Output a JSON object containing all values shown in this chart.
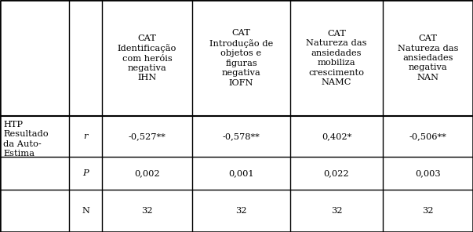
{
  "col_headers": [
    "CAT\nIdentificação\ncom heróis\nnegativa\nIHN",
    "CAT\nIntrodução de\nobjetos e\nfiguras\nnegativa\nIOFN",
    "CAT\nNatureza das\nansiedades\nmobiliza\ncrescimento\nNAMC",
    "CAT\nNatureza das\nansiedades\nnegativa\nNAN"
  ],
  "row_label": "HTP\nResultado\nda Auto-\nEstima",
  "stat_labels": [
    "r",
    "P",
    "N"
  ],
  "values": [
    [
      "-0,527**",
      "-0,578**",
      "0,402*",
      "-0,506**"
    ],
    [
      "0,002",
      "0,001",
      "0,022",
      "0,003"
    ],
    [
      "32",
      "32",
      "32",
      "32"
    ]
  ],
  "background_color": "#ffffff",
  "text_color": "#000000",
  "line_color": "#000000",
  "font_size": 8.2
}
